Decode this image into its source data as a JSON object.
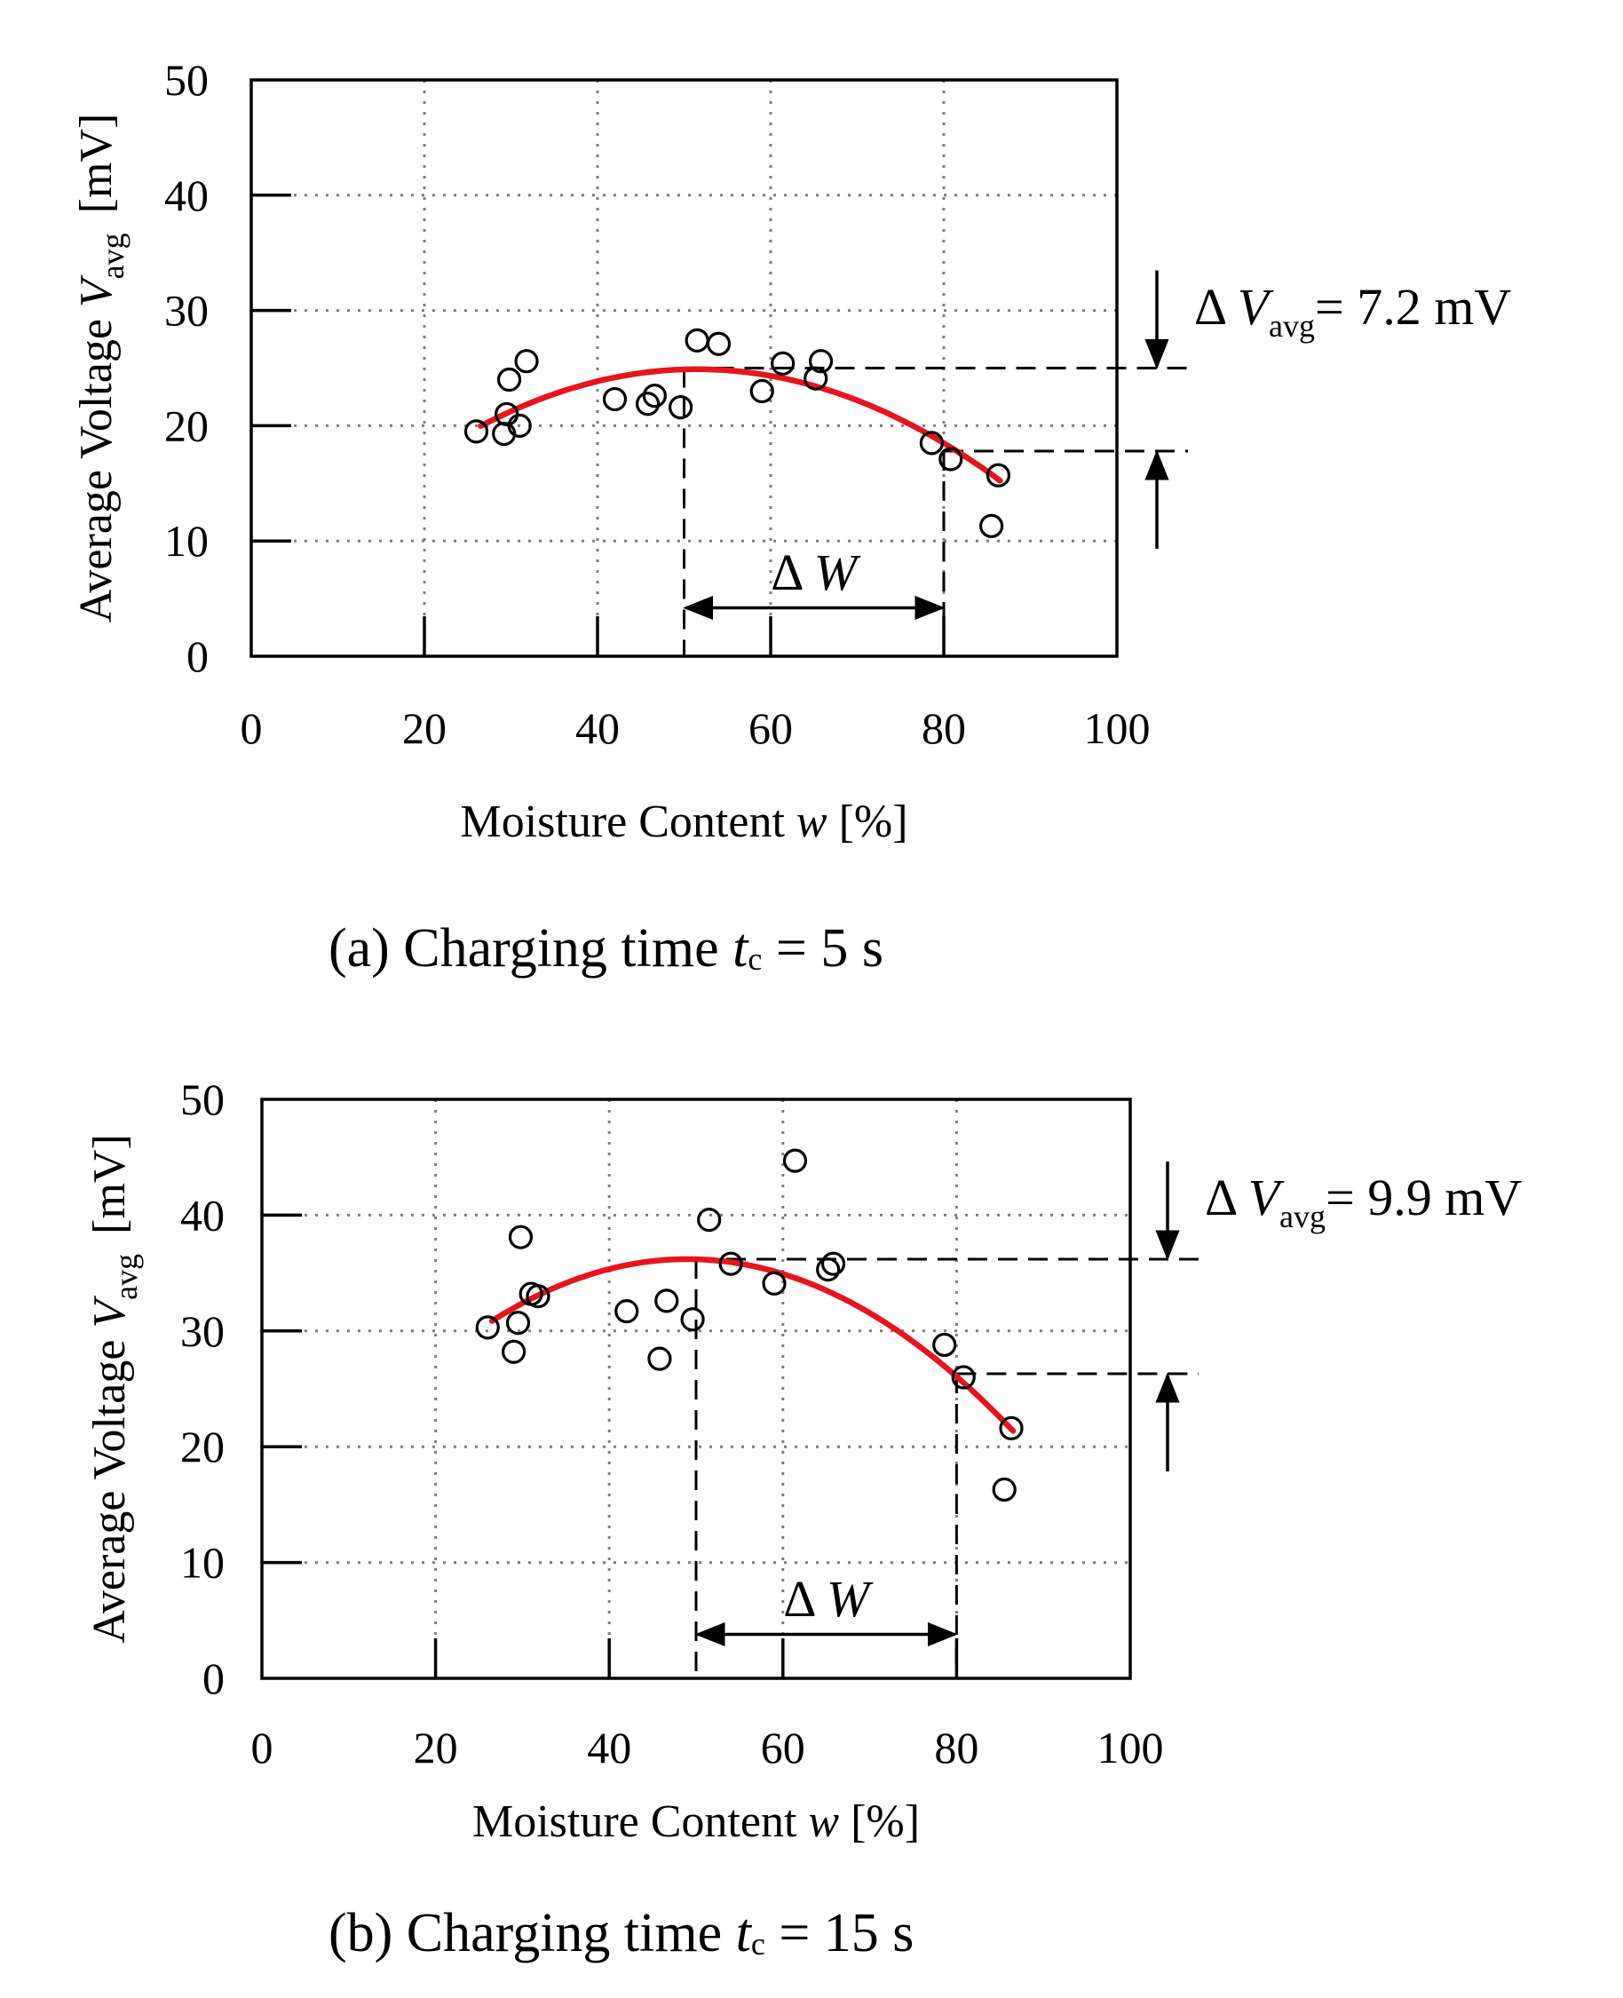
{
  "colors": {
    "fit_line": "#e8141c",
    "axis": "#000000",
    "grid": "#7f7f7f"
  },
  "chart_data": [
    {
      "type": "scatter",
      "caption": {
        "prefix": "(a) Charging time ",
        "var": "t",
        "sub": "c",
        "suffix": " = 5 s"
      },
      "xlabel": {
        "text": "Moisture Content ",
        "var": "w",
        "unit": " [%]"
      },
      "ylabel": {
        "text": "Average Voltage ",
        "var": "V",
        "sub": "avg",
        "unit": "[mV]"
      },
      "xlim": [
        0,
        100
      ],
      "ylim": [
        0,
        50
      ],
      "xticks": [
        0,
        20,
        40,
        60,
        80,
        100
      ],
      "yticks": [
        0,
        10,
        20,
        30,
        40,
        50
      ],
      "xtick_labels": [
        "0",
        "20",
        "40",
        "60",
        "80",
        "100"
      ],
      "ytick_labels": [
        "0",
        "10",
        "20",
        "30",
        "40",
        "50"
      ],
      "grid": true,
      "points": [
        {
          "x": 26,
          "y": 19.5
        },
        {
          "x": 29.2,
          "y": 19.3
        },
        {
          "x": 29.5,
          "y": 21
        },
        {
          "x": 29.8,
          "y": 24
        },
        {
          "x": 31,
          "y": 20
        },
        {
          "x": 31.8,
          "y": 25.6
        },
        {
          "x": 42,
          "y": 22.3
        },
        {
          "x": 45.8,
          "y": 21.9
        },
        {
          "x": 46.6,
          "y": 22.6
        },
        {
          "x": 49.6,
          "y": 21.6
        },
        {
          "x": 51.5,
          "y": 27.4
        },
        {
          "x": 54,
          "y": 27.1
        },
        {
          "x": 59,
          "y": 23
        },
        {
          "x": 61.4,
          "y": 25.4
        },
        {
          "x": 65.2,
          "y": 24.1
        },
        {
          "x": 65.8,
          "y": 25.6
        },
        {
          "x": 78.6,
          "y": 18.5
        },
        {
          "x": 80.8,
          "y": 17.1
        },
        {
          "x": 85.5,
          "y": 11.3
        },
        {
          "x": 86.3,
          "y": 15.7
        }
      ],
      "fit": {
        "a": -0.00789,
        "h": 51.5,
        "k": 24.9,
        "x_range": [
          26.5,
          86.5
        ]
      },
      "delta_v": {
        "symbol": "Δ",
        "var": "V",
        "sub": "avg",
        "value": "= 7.2 mV",
        "y_high": 25,
        "y_low": 17.8
      },
      "delta_w": {
        "label_symbol": "Δ",
        "label_var": "W",
        "x_start": 50,
        "x_end": 80,
        "y_arrow": 4.2,
        "y_label": 7.3
      }
    },
    {
      "type": "scatter",
      "caption": {
        "prefix": "(b) Charging time ",
        "var": "t",
        "sub": "c",
        "suffix": " = 15 s"
      },
      "xlabel": {
        "text": "Moisture Content ",
        "var": "w",
        "unit": " [%]"
      },
      "ylabel": {
        "text": "Average Voltage ",
        "var": "V",
        "sub": "avg",
        "unit": "[mV]"
      },
      "xlim": [
        0,
        100
      ],
      "ylim": [
        0,
        50
      ],
      "xticks": [
        0,
        20,
        40,
        60,
        80,
        100
      ],
      "yticks": [
        0,
        10,
        20,
        30,
        40,
        50
      ],
      "xtick_labels": [
        "0",
        "20",
        "40",
        "60",
        "80",
        "100"
      ],
      "ytick_labels": [
        "0",
        "10",
        "20",
        "30",
        "40",
        "50"
      ],
      "grid": true,
      "points": [
        {
          "x": 26,
          "y": 30.3
        },
        {
          "x": 29,
          "y": 28.2
        },
        {
          "x": 29.5,
          "y": 30.7
        },
        {
          "x": 29.8,
          "y": 38.1
        },
        {
          "x": 31,
          "y": 33.2
        },
        {
          "x": 31.8,
          "y": 33
        },
        {
          "x": 42,
          "y": 31.7
        },
        {
          "x": 45.8,
          "y": 27.6
        },
        {
          "x": 46.6,
          "y": 32.6
        },
        {
          "x": 49.6,
          "y": 31
        },
        {
          "x": 51.5,
          "y": 39.6
        },
        {
          "x": 54,
          "y": 35.8
        },
        {
          "x": 59,
          "y": 34.1
        },
        {
          "x": 61.4,
          "y": 44.7
        },
        {
          "x": 65.2,
          "y": 35.3
        },
        {
          "x": 65.8,
          "y": 35.8
        },
        {
          "x": 78.6,
          "y": 28.8
        },
        {
          "x": 80.8,
          "y": 26
        },
        {
          "x": 85.5,
          "y": 16.3
        },
        {
          "x": 86.3,
          "y": 21.6
        }
      ],
      "fit": {
        "a": -0.01055,
        "h": 49,
        "k": 36.2,
        "x_range": [
          26.5,
          86.5
        ]
      },
      "delta_v": {
        "symbol": "Δ",
        "var": "V",
        "sub": "avg",
        "value": "= 9.9 mV",
        "y_high": 36.2,
        "y_low": 26.3
      },
      "delta_w": {
        "label_symbol": "Δ",
        "label_var": "W",
        "x_start": 50,
        "x_end": 80,
        "y_arrow": 3.8,
        "y_label": 6.9
      }
    }
  ]
}
